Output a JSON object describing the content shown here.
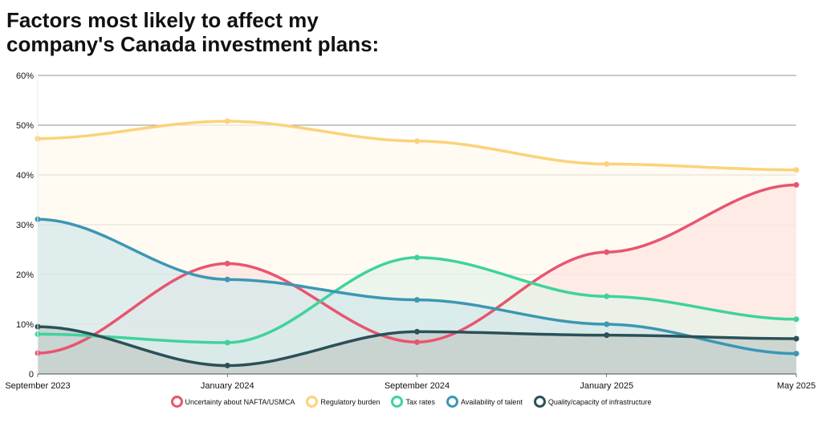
{
  "chart_data": {
    "type": "area",
    "title_lines": [
      "Factors most likely to affect my",
      "company's Canada investment plans:"
    ],
    "categories": [
      "September 2023",
      "January 2024",
      "September 2024",
      "January 2025",
      "May 2025"
    ],
    "ylim": [
      0,
      60
    ],
    "yticks": [
      0,
      10,
      20,
      30,
      40,
      50,
      60
    ],
    "ytick_labels": [
      "0",
      "10%",
      "20%",
      "30%",
      "40%",
      "50%",
      "60%"
    ],
    "grid": true,
    "legend_position": "bottom",
    "series": [
      {
        "name": "Uncertainty about NAFTA/USMCA",
        "color": "#e8556f",
        "fill": "#fde5e0",
        "values": [
          4.2,
          22.2,
          6.4,
          24.5,
          38
        ]
      },
      {
        "name": "Regulatory burden",
        "color": "#fcd27a",
        "fill": "#fffaee",
        "values": [
          47.3,
          50.8,
          46.8,
          42.2,
          41
        ]
      },
      {
        "name": "Tax rates",
        "color": "#3fd39b",
        "fill": "#e4f3e7",
        "values": [
          8,
          6.3,
          23.4,
          15.6,
          11
        ]
      },
      {
        "name": "Availability of talent",
        "color": "#3c97b3",
        "fill": "#d3e8ea",
        "values": [
          31.1,
          19,
          14.9,
          10,
          4.1
        ]
      },
      {
        "name": "Quality/capacity of infrastructure",
        "color": "#2b5058",
        "fill": "#c2ccc7",
        "values": [
          9.5,
          1.7,
          8.5,
          7.8,
          7.1
        ]
      }
    ],
    "draw_order": [
      1,
      0,
      2,
      3,
      4
    ]
  }
}
